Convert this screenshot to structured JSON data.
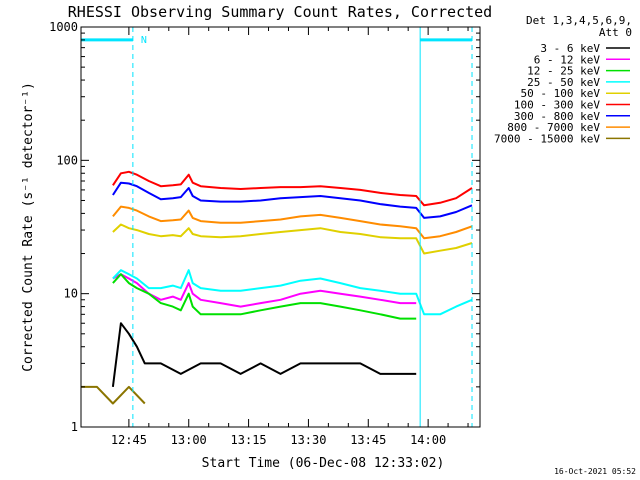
{
  "chart_data": {
    "type": "line",
    "title": "RHESSI Observing Summary Count Rates, Corrected",
    "xlabel": "Start Time (06-Dec-08 12:33:02)",
    "ylabel": "Corrected Count Rate (s⁻¹ detector⁻¹)",
    "yscale": "log",
    "ylim": [
      1,
      1000
    ],
    "xlim_minutes": [
      0,
      100
    ],
    "xticks": [
      {
        "m": 12,
        "label": "12:45"
      },
      {
        "m": 27,
        "label": "13:00"
      },
      {
        "m": 42,
        "label": "13:15"
      },
      {
        "m": 57,
        "label": "13:30"
      },
      {
        "m": 72,
        "label": "13:45"
      },
      {
        "m": 87,
        "label": "14:00"
      }
    ],
    "yticks": [
      {
        "v": 1,
        "label": "1"
      },
      {
        "v": 10,
        "label": "10"
      },
      {
        "v": 100,
        "label": "100"
      },
      {
        "v": 1000,
        "label": "1000"
      }
    ],
    "legend_header": [
      "Det 1,3,4,5,6,9,",
      "Att 0"
    ],
    "legend_position": "right",
    "flags": {
      "color": "#00e5ff",
      "bars": [
        [
          0,
          13
        ],
        [
          85,
          98
        ]
      ],
      "bar_level": 800,
      "dashed_lines_minutes": [
        13,
        98
      ],
      "solid_lines_minutes": [
        0,
        85
      ],
      "label": "N",
      "label_minute": 15
    },
    "series": [
      {
        "name": "3 - 6 keV",
        "color": "#000000",
        "values": [
          [
            8,
            2
          ],
          [
            10,
            6
          ],
          [
            12,
            5
          ],
          [
            14,
            4
          ],
          [
            16,
            3
          ],
          [
            20,
            3
          ],
          [
            25,
            2.5
          ],
          [
            30,
            3
          ],
          [
            35,
            3
          ],
          [
            40,
            2.5
          ],
          [
            45,
            3
          ],
          [
            50,
            2.5
          ],
          [
            55,
            3
          ],
          [
            60,
            3
          ],
          [
            65,
            3
          ],
          [
            70,
            3
          ],
          [
            75,
            2.5
          ],
          [
            80,
            2.5
          ],
          [
            84,
            2.5
          ]
        ]
      },
      {
        "name": "6 - 12 keV",
        "color": "#ff00ff",
        "values": [
          [
            8,
            13
          ],
          [
            10,
            14
          ],
          [
            12,
            13
          ],
          [
            14,
            12
          ],
          [
            17,
            10
          ],
          [
            20,
            9
          ],
          [
            23,
            9.5
          ],
          [
            25,
            9
          ],
          [
            27,
            12
          ],
          [
            28,
            10
          ],
          [
            30,
            9
          ],
          [
            35,
            8.5
          ],
          [
            40,
            8
          ],
          [
            45,
            8.5
          ],
          [
            50,
            9
          ],
          [
            55,
            10
          ],
          [
            60,
            10.5
          ],
          [
            65,
            10
          ],
          [
            70,
            9.5
          ],
          [
            75,
            9
          ],
          [
            80,
            8.5
          ],
          [
            84,
            8.5
          ]
        ]
      },
      {
        "name": "12 - 25 keV",
        "color": "#00e000",
        "values": [
          [
            8,
            12
          ],
          [
            10,
            14
          ],
          [
            12,
            12
          ],
          [
            14,
            11
          ],
          [
            17,
            10
          ],
          [
            20,
            8.5
          ],
          [
            23,
            8
          ],
          [
            25,
            7.5
          ],
          [
            27,
            10
          ],
          [
            28,
            8
          ],
          [
            30,
            7
          ],
          [
            35,
            7
          ],
          [
            40,
            7
          ],
          [
            45,
            7.5
          ],
          [
            50,
            8
          ],
          [
            55,
            8.5
          ],
          [
            60,
            8.5
          ],
          [
            65,
            8
          ],
          [
            70,
            7.5
          ],
          [
            75,
            7
          ],
          [
            80,
            6.5
          ],
          [
            84,
            6.5
          ]
        ]
      },
      {
        "name": "25 - 50 keV",
        "color": "#00ffff",
        "values": [
          [
            8,
            13
          ],
          [
            10,
            15
          ],
          [
            12,
            14
          ],
          [
            14,
            13
          ],
          [
            17,
            11
          ],
          [
            20,
            11
          ],
          [
            23,
            11.5
          ],
          [
            25,
            11
          ],
          [
            27,
            15
          ],
          [
            28,
            12
          ],
          [
            30,
            11
          ],
          [
            35,
            10.5
          ],
          [
            40,
            10.5
          ],
          [
            45,
            11
          ],
          [
            50,
            11.5
          ],
          [
            55,
            12.5
          ],
          [
            60,
            13
          ],
          [
            65,
            12
          ],
          [
            70,
            11
          ],
          [
            75,
            10.5
          ],
          [
            80,
            10
          ],
          [
            84,
            10
          ],
          [
            86,
            7
          ],
          [
            90,
            7
          ],
          [
            94,
            8
          ],
          [
            98,
            9
          ]
        ]
      },
      {
        "name": "50 - 100 keV",
        "color": "#e0d000",
        "values": [
          [
            8,
            29
          ],
          [
            10,
            33
          ],
          [
            12,
            31
          ],
          [
            14,
            30
          ],
          [
            17,
            28
          ],
          [
            20,
            27
          ],
          [
            23,
            27.5
          ],
          [
            25,
            27
          ],
          [
            27,
            31
          ],
          [
            28,
            28
          ],
          [
            30,
            27
          ],
          [
            35,
            26.5
          ],
          [
            40,
            27
          ],
          [
            45,
            28
          ],
          [
            50,
            29
          ],
          [
            55,
            30
          ],
          [
            60,
            31
          ],
          [
            65,
            29
          ],
          [
            70,
            28
          ],
          [
            75,
            26.5
          ],
          [
            80,
            26
          ],
          [
            84,
            26
          ],
          [
            86,
            20
          ],
          [
            90,
            21
          ],
          [
            94,
            22
          ],
          [
            98,
            24
          ]
        ]
      },
      {
        "name": "100 - 300 keV",
        "color": "#ff0000",
        "values": [
          [
            8,
            65
          ],
          [
            10,
            80
          ],
          [
            12,
            82
          ],
          [
            14,
            78
          ],
          [
            17,
            70
          ],
          [
            20,
            64
          ],
          [
            23,
            65
          ],
          [
            25,
            66
          ],
          [
            27,
            78
          ],
          [
            28,
            68
          ],
          [
            30,
            64
          ],
          [
            35,
            62
          ],
          [
            40,
            61
          ],
          [
            45,
            62
          ],
          [
            50,
            63
          ],
          [
            55,
            63
          ],
          [
            60,
            64
          ],
          [
            65,
            62
          ],
          [
            70,
            60
          ],
          [
            75,
            57
          ],
          [
            80,
            55
          ],
          [
            84,
            54
          ],
          [
            86,
            46
          ],
          [
            90,
            48
          ],
          [
            94,
            52
          ],
          [
            98,
            62
          ]
        ]
      },
      {
        "name": "300 - 800 keV",
        "color": "#0000ff",
        "values": [
          [
            8,
            55
          ],
          [
            10,
            68
          ],
          [
            12,
            67
          ],
          [
            14,
            64
          ],
          [
            17,
            57
          ],
          [
            20,
            51
          ],
          [
            23,
            52
          ],
          [
            25,
            53
          ],
          [
            27,
            62
          ],
          [
            28,
            54
          ],
          [
            30,
            50
          ],
          [
            35,
            49
          ],
          [
            40,
            49
          ],
          [
            45,
            50
          ],
          [
            50,
            52
          ],
          [
            55,
            53
          ],
          [
            60,
            54
          ],
          [
            65,
            52
          ],
          [
            70,
            50
          ],
          [
            75,
            47
          ],
          [
            80,
            45
          ],
          [
            84,
            44
          ],
          [
            86,
            37
          ],
          [
            90,
            38
          ],
          [
            94,
            41
          ],
          [
            98,
            46
          ]
        ]
      },
      {
        "name": "800 - 7000 keV",
        "color": "#ff8c00",
        "values": [
          [
            8,
            38
          ],
          [
            10,
            45
          ],
          [
            12,
            44
          ],
          [
            14,
            42
          ],
          [
            17,
            38
          ],
          [
            20,
            35
          ],
          [
            23,
            35.5
          ],
          [
            25,
            36
          ],
          [
            27,
            42
          ],
          [
            28,
            37
          ],
          [
            30,
            35
          ],
          [
            35,
            34
          ],
          [
            40,
            34
          ],
          [
            45,
            35
          ],
          [
            50,
            36
          ],
          [
            55,
            38
          ],
          [
            60,
            39
          ],
          [
            65,
            37
          ],
          [
            70,
            35
          ],
          [
            75,
            33
          ],
          [
            80,
            32
          ],
          [
            84,
            31
          ],
          [
            86,
            26
          ],
          [
            90,
            27
          ],
          [
            94,
            29
          ],
          [
            98,
            32
          ]
        ]
      },
      {
        "name": "7000 - 15000 keV",
        "color": "#8b7500",
        "values": [
          [
            0,
            2
          ],
          [
            4,
            2
          ],
          [
            8,
            1.5
          ],
          [
            12,
            2
          ],
          [
            16,
            1.5
          ]
        ]
      }
    ]
  },
  "footer": {
    "timestamp": "16-Oct-2021 05:52"
  }
}
